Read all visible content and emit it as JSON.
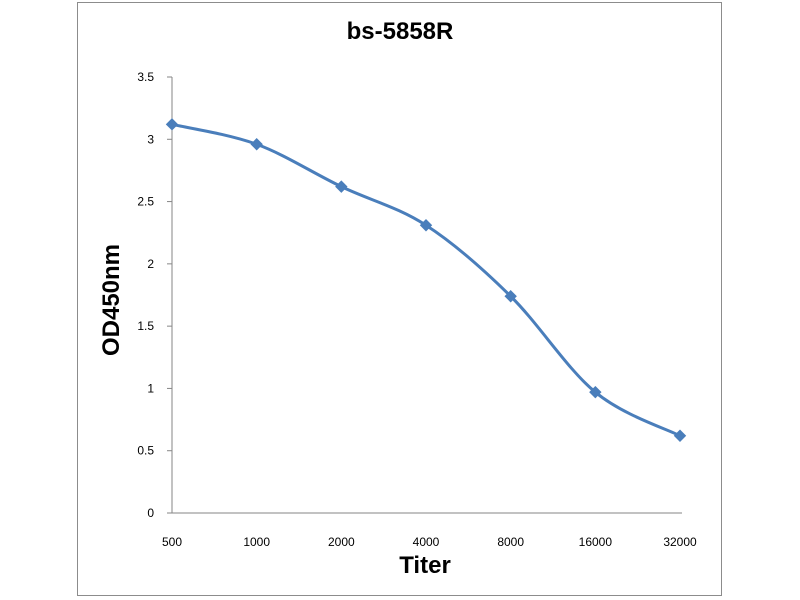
{
  "chart_data": {
    "type": "line",
    "title": "bs-5858R",
    "xlabel": "Titer",
    "ylabel": "OD450nm",
    "categories": [
      "500",
      "1000",
      "2000",
      "4000",
      "8000",
      "16000",
      "32000"
    ],
    "series": [
      {
        "values": [
          3.12,
          2.96,
          2.62,
          2.31,
          1.74,
          0.97,
          0.62
        ]
      }
    ],
    "ylim": [
      0,
      3.5
    ],
    "yticks": [
      "0",
      "0.5",
      "1",
      "1.5",
      "2",
      "2.5",
      "3",
      "3.5"
    ],
    "grid": false,
    "line_color": "#4a7ebb",
    "marker": "diamond"
  }
}
